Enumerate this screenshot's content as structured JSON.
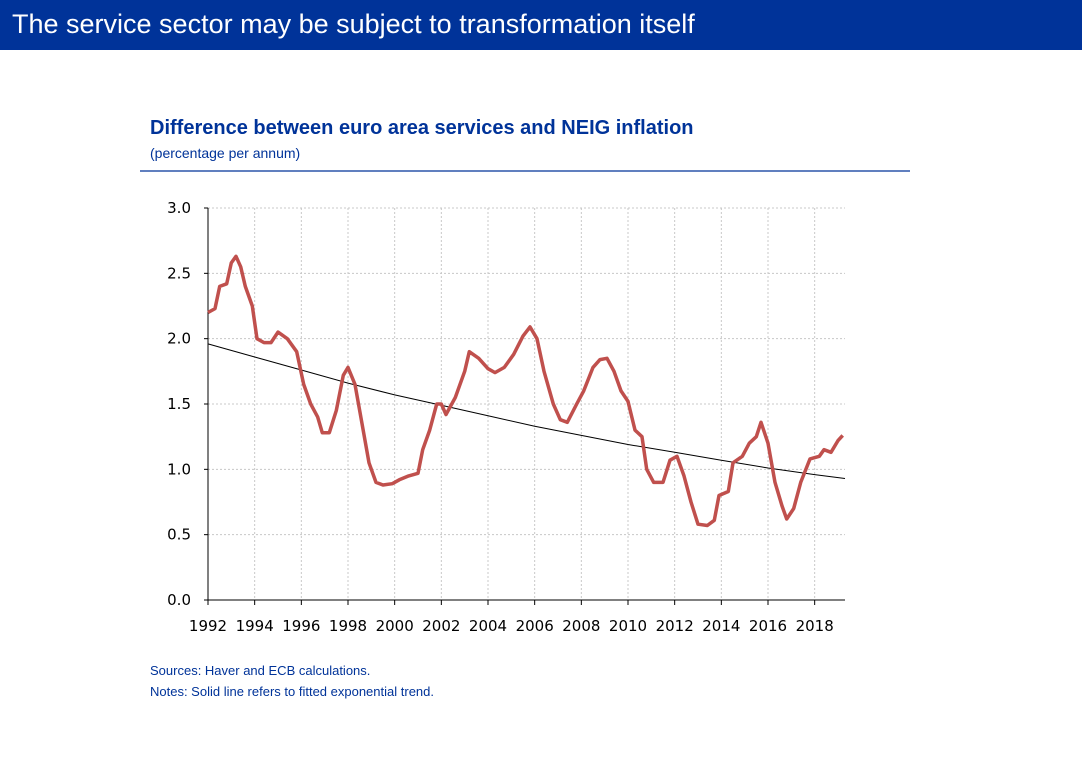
{
  "header": {
    "title": "The service sector may be subject to transformation itself"
  },
  "chart_data": {
    "type": "line",
    "title": "Difference between euro area services and NEIG inflation",
    "subtitle": "(percentage per annum)",
    "sources": "Sources: Haver and ECB calculations.",
    "notes": "Notes: Solid line refers to fitted exponential trend.",
    "xlim": [
      1992,
      2019.3
    ],
    "xticks": [
      1992,
      1994,
      1996,
      1998,
      2000,
      2002,
      2004,
      2006,
      2008,
      2010,
      2012,
      2014,
      2016,
      2018
    ],
    "ylim": [
      0,
      3
    ],
    "yticks": [
      {
        "value": 0,
        "label": "0.0"
      },
      0.5,
      {
        "value": 1,
        "label": "1.0"
      },
      1.5,
      {
        "value": 2,
        "label": "2.0"
      },
      2.5,
      {
        "value": 3,
        "label": "3.0"
      }
    ],
    "grid": true,
    "series": [
      {
        "color": "#c0504d",
        "x": [
          1992.0,
          1992.3,
          1992.5,
          1992.8,
          1993.0,
          1993.2,
          1993.4,
          1993.6,
          1993.9,
          1994.1,
          1994.4,
          1994.7,
          1995.0,
          1995.4,
          1995.8,
          1996.1,
          1996.4,
          1996.7,
          1996.9,
          1997.2,
          1997.5,
          1997.8,
          1998.0,
          1998.3,
          1998.6,
          1998.9,
          1999.2,
          1999.5,
          1999.9,
          2000.2,
          2000.6,
          2001.0,
          2001.2,
          2001.5,
          2001.8,
          2002.0,
          2002.2,
          2002.6,
          2003.0,
          2003.2,
          2003.6,
          2004.0,
          2004.3,
          2004.7,
          2005.1,
          2005.5,
          2005.8,
          2006.1,
          2006.4,
          2006.8,
          2007.1,
          2007.4,
          2007.8,
          2008.1,
          2008.5,
          2008.8,
          2009.1,
          2009.4,
          2009.7,
          2010.0,
          2010.3,
          2010.6,
          2010.8,
          2011.1,
          2011.5,
          2011.8,
          2012.1,
          2012.4,
          2012.7,
          2013.0,
          2013.4,
          2013.7,
          2013.9,
          2014.3,
          2014.5,
          2014.9,
          2015.2,
          2015.5,
          2015.7,
          2016.0,
          2016.3,
          2016.6,
          2016.8,
          2017.1,
          2017.4,
          2017.8,
          2018.2,
          2018.4,
          2018.7,
          2019.0,
          2019.2
        ],
        "values": [
          2.2,
          2.23,
          2.4,
          2.42,
          2.58,
          2.63,
          2.55,
          2.4,
          2.25,
          2.0,
          1.97,
          1.97,
          2.05,
          2.0,
          1.9,
          1.65,
          1.5,
          1.4,
          1.28,
          1.28,
          1.45,
          1.72,
          1.78,
          1.65,
          1.35,
          1.05,
          0.9,
          0.88,
          0.89,
          0.92,
          0.95,
          0.97,
          1.15,
          1.3,
          1.5,
          1.5,
          1.42,
          1.55,
          1.75,
          1.9,
          1.85,
          1.77,
          1.74,
          1.78,
          1.88,
          2.02,
          2.09,
          2.0,
          1.75,
          1.5,
          1.38,
          1.36,
          1.5,
          1.6,
          1.78,
          1.84,
          1.85,
          1.75,
          1.6,
          1.52,
          1.3,
          1.25,
          1.0,
          0.9,
          0.9,
          1.07,
          1.1,
          0.95,
          0.75,
          0.58,
          0.57,
          0.61,
          0.8,
          0.83,
          1.05,
          1.1,
          1.2,
          1.25,
          1.36,
          1.2,
          0.9,
          0.72,
          0.62,
          0.7,
          0.9,
          1.08,
          1.1,
          1.15,
          1.13,
          1.22,
          1.26
        ]
      },
      {
        "color": "#000000",
        "x": [
          1992,
          1994,
          1996,
          1998,
          2000,
          2002,
          2004,
          2006,
          2008,
          2010,
          2012,
          2014,
          2016,
          2018,
          2019.3
        ],
        "values": [
          1.96,
          1.86,
          1.76,
          1.66,
          1.57,
          1.49,
          1.41,
          1.33,
          1.26,
          1.19,
          1.13,
          1.07,
          1.01,
          0.96,
          0.93
        ]
      }
    ]
  }
}
